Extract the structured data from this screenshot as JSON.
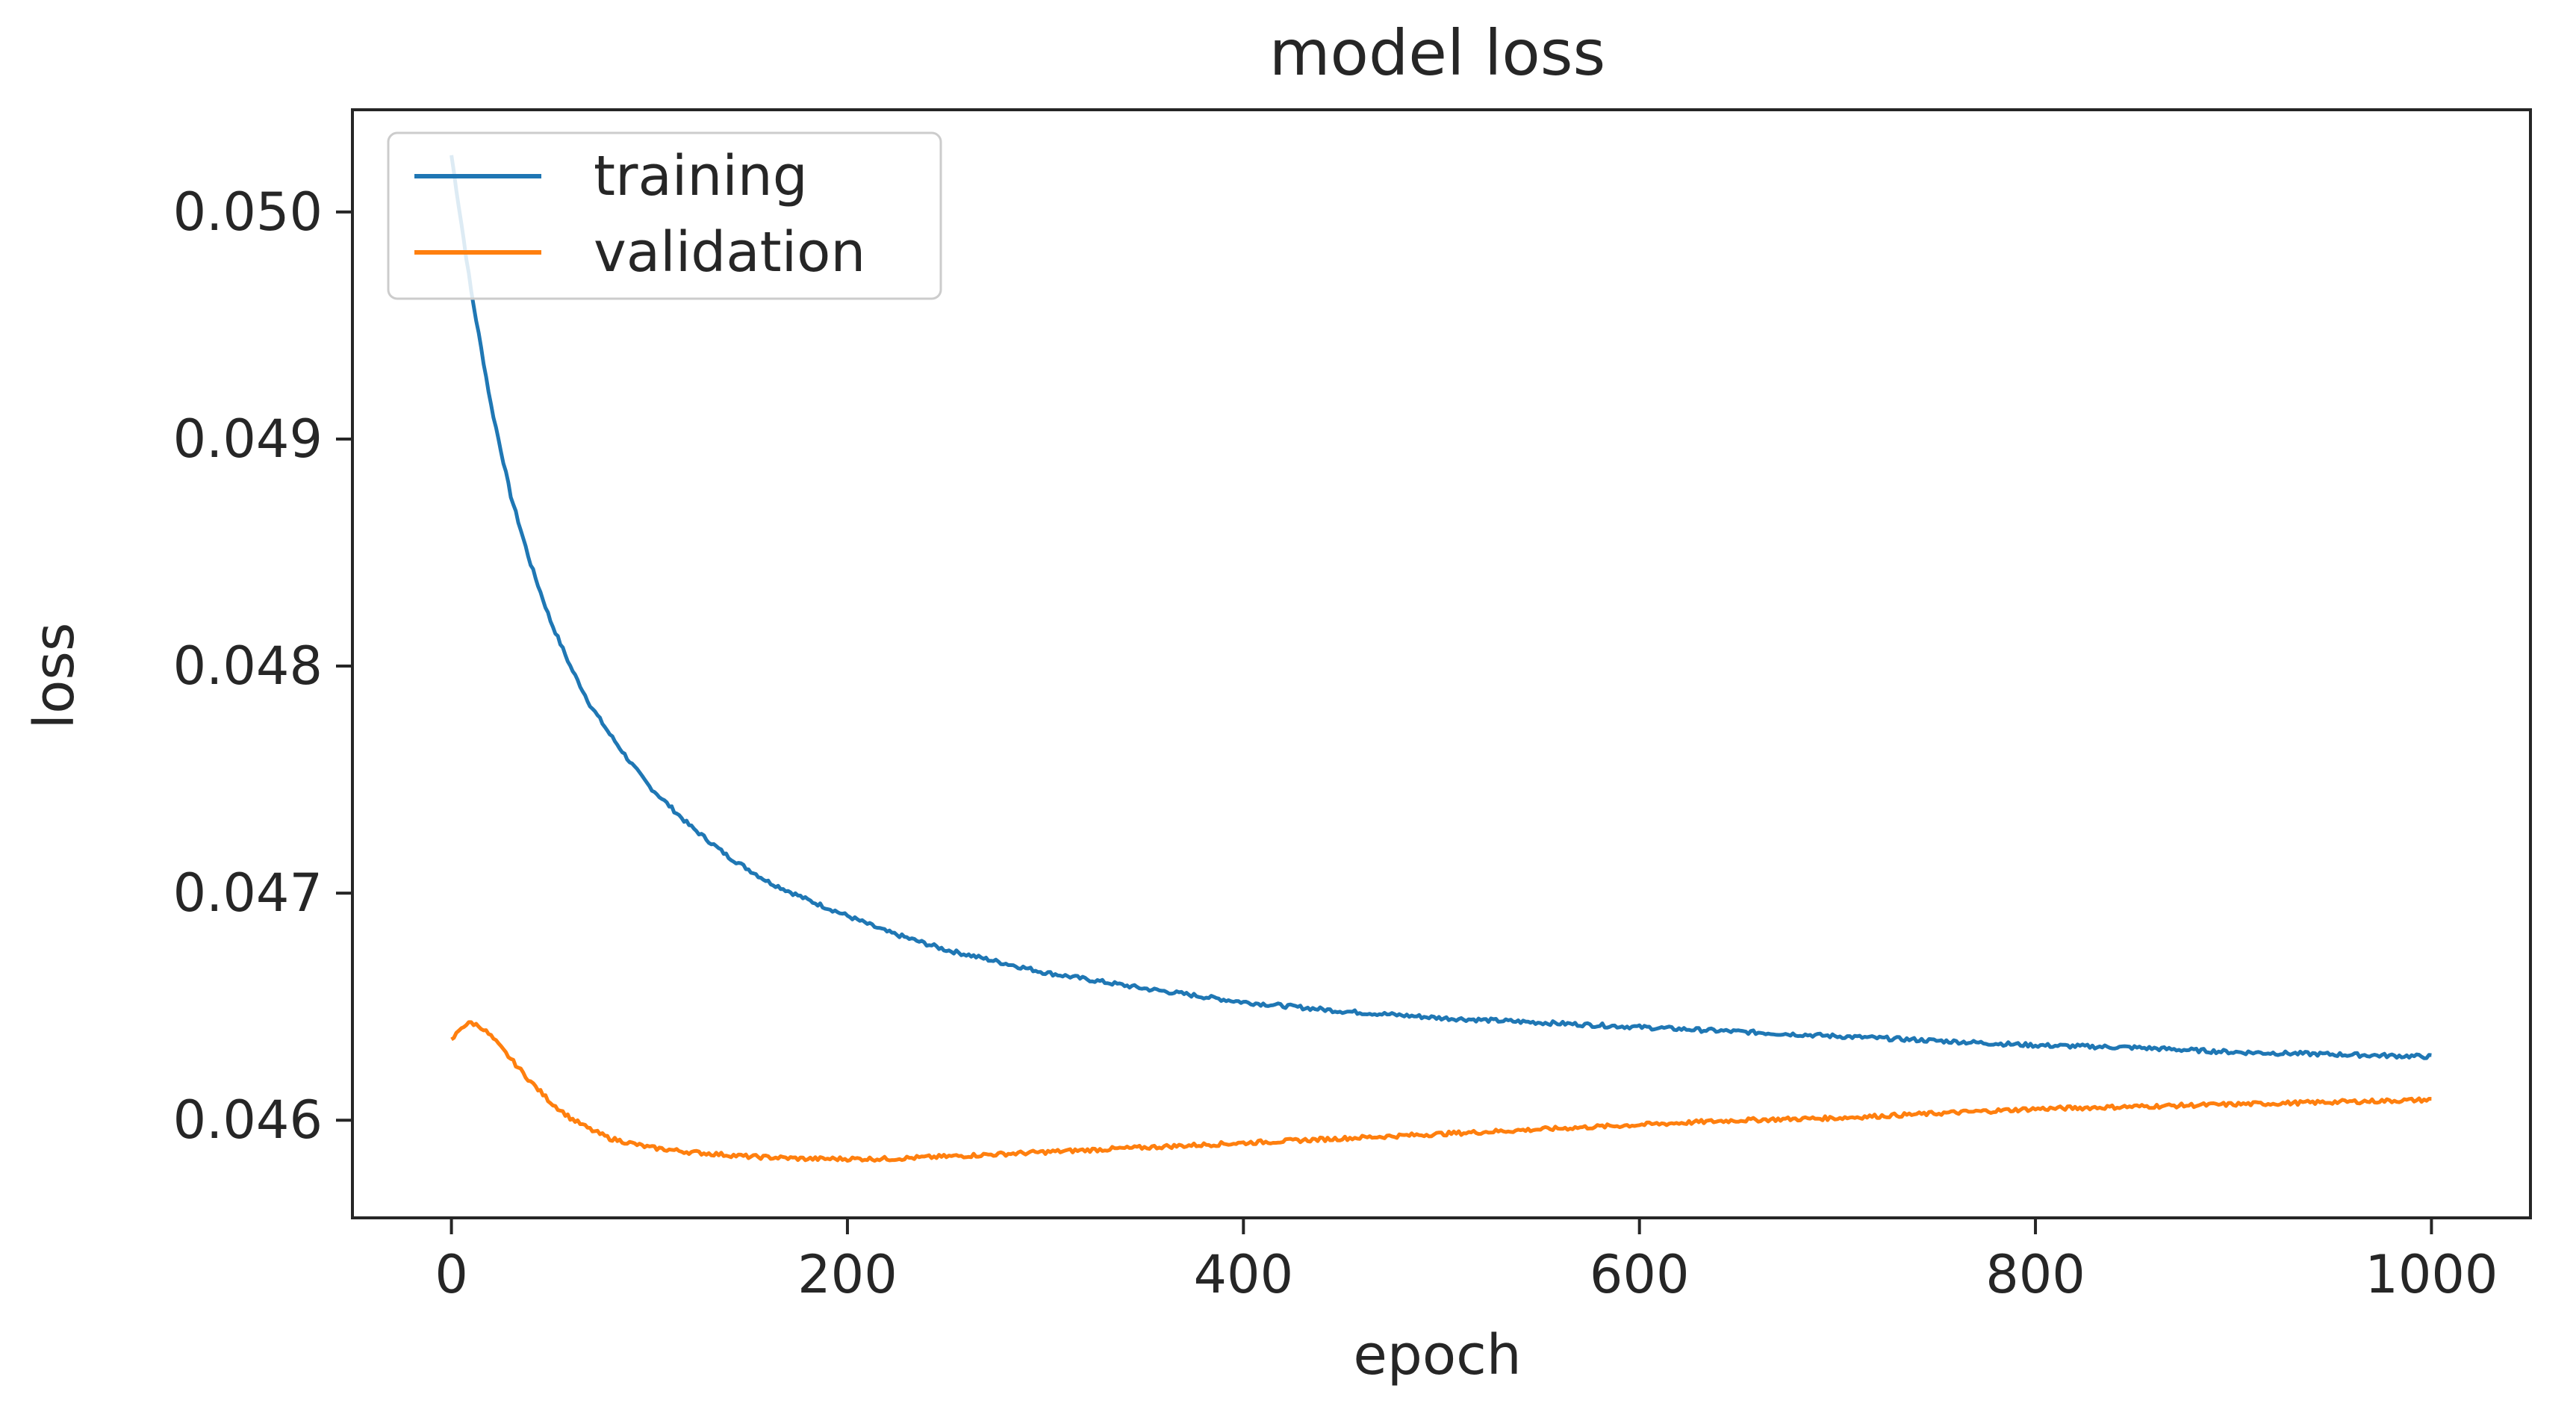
{
  "chart_data": {
    "type": "line",
    "title": "model loss",
    "xlabel": "epoch",
    "ylabel": "loss",
    "xlim": [
      -50,
      1050
    ],
    "ylim": [
      0.04557,
      0.05045
    ],
    "grid": false,
    "legend_position": "top-left",
    "xticks": [
      0,
      200,
      400,
      600,
      800,
      1000
    ],
    "xtick_labels": [
      "0",
      "200",
      "400",
      "600",
      "800",
      "1000"
    ],
    "yticks": [
      0.046,
      0.047,
      0.048,
      0.049,
      0.05
    ],
    "ytick_labels": [
      "0.046",
      "0.047",
      "0.048",
      "0.049",
      "0.050"
    ],
    "series": [
      {
        "name": "training",
        "color": "#1f77b4",
        "x": [
          0,
          10,
          20,
          30,
          40,
          50,
          60,
          70,
          80,
          90,
          100,
          120,
          140,
          160,
          180,
          200,
          220,
          250,
          280,
          300,
          350,
          400,
          450,
          500,
          550,
          600,
          650,
          700,
          750,
          800,
          850,
          900,
          950,
          1000
        ],
        "y": [
          0.05025,
          0.04965,
          0.04915,
          0.04875,
          0.04845,
          0.0482,
          0.048,
          0.04783,
          0.0477,
          0.04758,
          0.04747,
          0.0473,
          0.04716,
          0.04705,
          0.04697,
          0.0469,
          0.04683,
          0.04675,
          0.04669,
          0.04665,
          0.04658,
          0.04652,
          0.04648,
          0.04645,
          0.04643,
          0.04641,
          0.04639,
          0.04637,
          0.04635,
          0.04633,
          0.04632,
          0.0463,
          0.04629,
          0.04628
        ]
      },
      {
        "name": "validation",
        "color": "#ff7f0e",
        "x": [
          0,
          5,
          10,
          15,
          20,
          30,
          40,
          50,
          60,
          70,
          80,
          100,
          120,
          150,
          180,
          200,
          220,
          250,
          300,
          350,
          400,
          450,
          500,
          550,
          600,
          650,
          700,
          750,
          800,
          850,
          900,
          950,
          1000
        ],
        "y": [
          0.04635,
          0.04641,
          0.04643,
          0.04641,
          0.04637,
          0.04627,
          0.04617,
          0.04608,
          0.04601,
          0.04596,
          0.04592,
          0.04588,
          0.04586,
          0.04584,
          0.04583,
          0.04583,
          0.04583,
          0.04584,
          0.04586,
          0.04588,
          0.0459,
          0.04592,
          0.04594,
          0.04596,
          0.04598,
          0.046,
          0.04601,
          0.04603,
          0.04605,
          0.04606,
          0.04607,
          0.04608,
          0.04609
        ]
      }
    ]
  }
}
